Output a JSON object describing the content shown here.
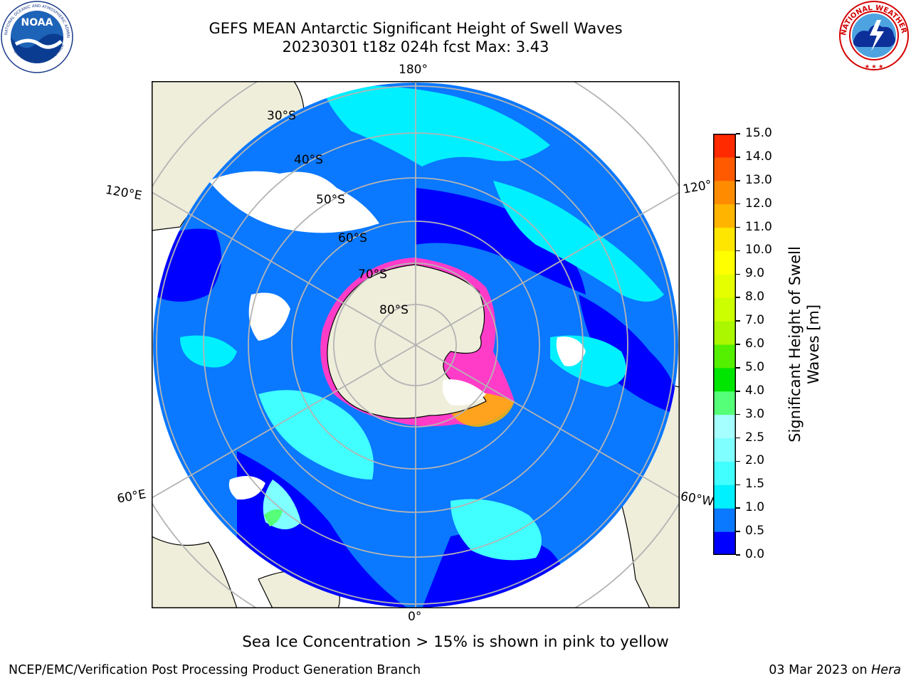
{
  "title_line1": "GEFS MEAN Antarctic Significant Height of Swell Waves",
  "title_line2": "20230301 t18z 024h fcst   Max: 3.43",
  "longitude_labels": {
    "top": "180°",
    "bottom": "0°",
    "upper_left": "120°E",
    "upper_right": "120°",
    "lower_left": "60°E",
    "lower_right": "60°W"
  },
  "latitude_labels": [
    "30°S",
    "40°S",
    "50°S",
    "60°S",
    "70°S",
    "80°S"
  ],
  "colorbar": {
    "label_line1": "Significant Height of Swell",
    "label_line2": "Waves [m]",
    "ticks": [
      "0.0",
      "0.5",
      "1.0",
      "1.5",
      "2.0",
      "2.5",
      "3.0",
      "4.0",
      "5.0",
      "6.0",
      "7.0",
      "8.0",
      "9.0",
      "10.0",
      "11.0",
      "12.0",
      "13.0",
      "14.0",
      "15.0"
    ],
    "colors": [
      "#0000ff",
      "#0a78ff",
      "#00f0ff",
      "#41ffff",
      "#7fffff",
      "#a5ffff",
      "#55ff77",
      "#00e600",
      "#55ef00",
      "#aaf700",
      "#ccff00",
      "#e6ff00",
      "#ffff00",
      "#ffe600",
      "#ffb400",
      "#ff8c00",
      "#ff5a00",
      "#ff2a00",
      "#ff0000"
    ]
  },
  "note": "Sea Ice Concentration > 15% is shown in pink to yellow",
  "footer_left": "NCEP/EMC/Verification Post Processing Product Generation Branch",
  "footer_date": "03 Mar 2023 on ",
  "footer_machine": "Hera",
  "logos": {
    "noaa": "NOAA",
    "noaa_ring_top": "NATIONAL OCEANIC AND ATMOSPHERIC ADMINISTRATION",
    "noaa_ring_bottom": "U.S. DEPARTMENT OF COMMERCE",
    "nws_ring": "NATIONAL WEATHER SERVICE"
  },
  "palette": {
    "land": "#efeedb",
    "ocean_dark": "#0000ff",
    "ocean_mid": "#0a78ff",
    "ocean_light": "#00f0ff",
    "ocean_lighter": "#7fffff",
    "ice_pink": "#ff3cc8",
    "grid": "#b4b4b4"
  }
}
